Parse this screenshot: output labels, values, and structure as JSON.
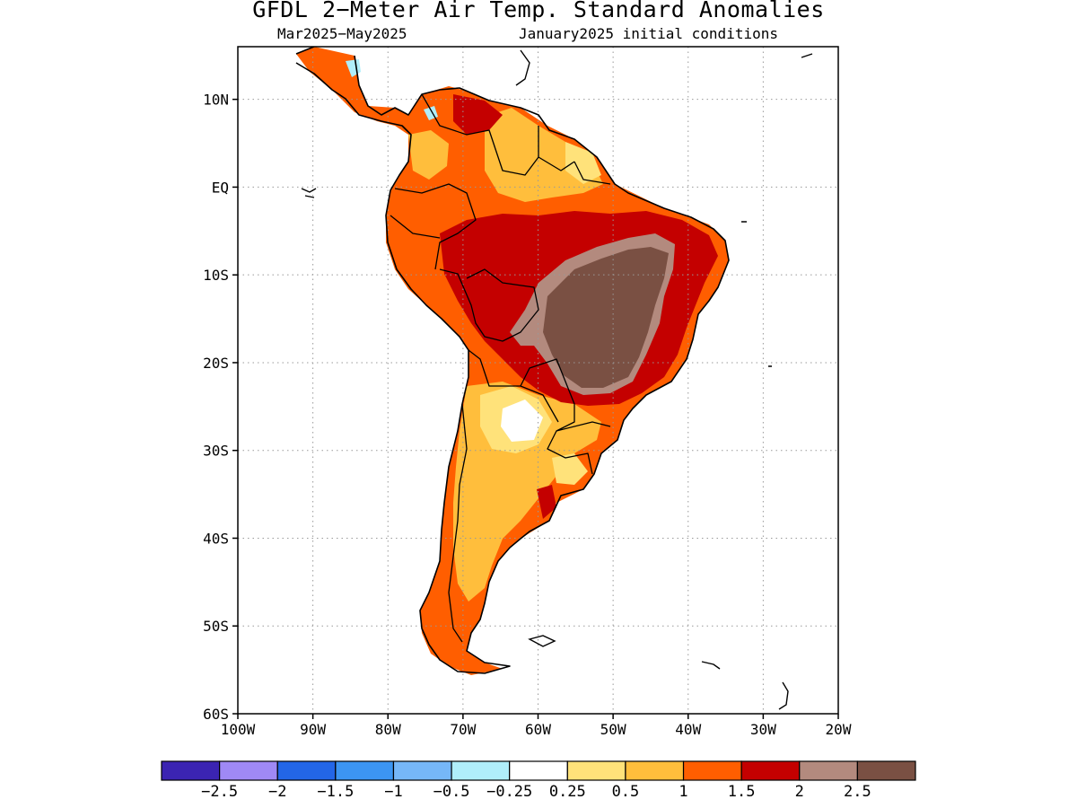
{
  "title": "GFDL 2−Meter Air Temp. Standard Anomalies",
  "subtitle_left": "Mar2025−May2025",
  "subtitle_right": "January2025 initial conditions",
  "map": {
    "lon_range": [
      -100,
      -20
    ],
    "lat_range": [
      -60,
      16
    ],
    "lon_ticks": [
      "100W",
      "90W",
      "80W",
      "70W",
      "60W",
      "50W",
      "40W",
      "30W",
      "20W"
    ],
    "lat_ticks": [
      "10N",
      "EQ",
      "10S",
      "20S",
      "30S",
      "40S",
      "50S",
      "60S"
    ],
    "grid": "dotted"
  },
  "colorbar": {
    "colors": [
      "#3b24b2",
      "#9f89f5",
      "#2366e7",
      "#3c95f2",
      "#76b7f8",
      "#b0eefa",
      "#ffffff",
      "#ffe27a",
      "#ffbe3c",
      "#ff5e00",
      "#c40000",
      "#b38a7e",
      "#7a5043"
    ],
    "labels": [
      "−2.5",
      "−2",
      "−1.5",
      "−1",
      "−0.5",
      "−0.25",
      "0.25",
      "0.5",
      "1",
      "1.5",
      "2",
      "2.5"
    ]
  }
}
